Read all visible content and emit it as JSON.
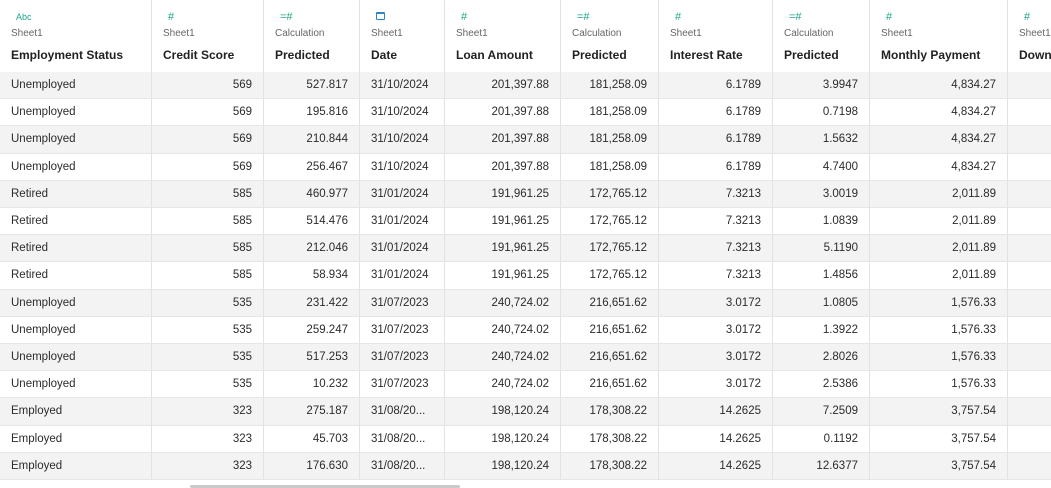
{
  "columns": [
    {
      "source": "Sheet1",
      "name": "Employment Status",
      "icon": "abc-string-icon",
      "glyph": "Abc",
      "color": "teal"
    },
    {
      "source": "Sheet1",
      "name": "Credit Score",
      "icon": "number-icon",
      "glyph": "#",
      "color": "teal"
    },
    {
      "source": "Calculation",
      "name": "Predicted",
      "icon": "calculated-number-icon",
      "glyph": "=#",
      "color": "teal"
    },
    {
      "source": "Sheet1",
      "name": "Date",
      "icon": "calendar-icon",
      "glyph": "",
      "color": "blue"
    },
    {
      "source": "Sheet1",
      "name": "Loan Amount",
      "icon": "number-icon",
      "glyph": "#",
      "color": "teal"
    },
    {
      "source": "Calculation",
      "name": "Predicted",
      "icon": "calculated-number-icon",
      "glyph": "=#",
      "color": "teal"
    },
    {
      "source": "Sheet1",
      "name": "Interest Rate",
      "icon": "number-icon",
      "glyph": "#",
      "color": "teal"
    },
    {
      "source": "Calculation",
      "name": "Predicted",
      "icon": "calculated-number-icon",
      "glyph": "=#",
      "color": "teal"
    },
    {
      "source": "Sheet1",
      "name": "Monthly Payment",
      "icon": "number-icon",
      "glyph": "#",
      "color": "teal"
    },
    {
      "source": "Sheet1",
      "name": "Down",
      "icon": "number-icon",
      "glyph": "#",
      "color": "teal"
    }
  ],
  "rows": [
    [
      "Unemployed",
      "569",
      "527.817",
      "31/10/2024",
      "201,397.88",
      "181,258.09",
      "6.1789",
      "3.9947",
      "4,834.27",
      ""
    ],
    [
      "Unemployed",
      "569",
      "195.816",
      "31/10/2024",
      "201,397.88",
      "181,258.09",
      "6.1789",
      "0.7198",
      "4,834.27",
      ""
    ],
    [
      "Unemployed",
      "569",
      "210.844",
      "31/10/2024",
      "201,397.88",
      "181,258.09",
      "6.1789",
      "1.5632",
      "4,834.27",
      ""
    ],
    [
      "Unemployed",
      "569",
      "256.467",
      "31/10/2024",
      "201,397.88",
      "181,258.09",
      "6.1789",
      "4.7400",
      "4,834.27",
      ""
    ],
    [
      "Retired",
      "585",
      "460.977",
      "31/01/2024",
      "191,961.25",
      "172,765.12",
      "7.3213",
      "3.0019",
      "2,011.89",
      ""
    ],
    [
      "Retired",
      "585",
      "514.476",
      "31/01/2024",
      "191,961.25",
      "172,765.12",
      "7.3213",
      "1.0839",
      "2,011.89",
      ""
    ],
    [
      "Retired",
      "585",
      "212.046",
      "31/01/2024",
      "191,961.25",
      "172,765.12",
      "7.3213",
      "5.1190",
      "2,011.89",
      ""
    ],
    [
      "Retired",
      "585",
      "58.934",
      "31/01/2024",
      "191,961.25",
      "172,765.12",
      "7.3213",
      "1.4856",
      "2,011.89",
      ""
    ],
    [
      "Unemployed",
      "535",
      "231.422",
      "31/07/2023",
      "240,724.02",
      "216,651.62",
      "3.0172",
      "1.0805",
      "1,576.33",
      ""
    ],
    [
      "Unemployed",
      "535",
      "259.247",
      "31/07/2023",
      "240,724.02",
      "216,651.62",
      "3.0172",
      "1.3922",
      "1,576.33",
      ""
    ],
    [
      "Unemployed",
      "535",
      "517.253",
      "31/07/2023",
      "240,724.02",
      "216,651.62",
      "3.0172",
      "2.8026",
      "1,576.33",
      ""
    ],
    [
      "Unemployed",
      "535",
      "10.232",
      "31/07/2023",
      "240,724.02",
      "216,651.62",
      "3.0172",
      "2.5386",
      "1,576.33",
      ""
    ],
    [
      "Employed",
      "323",
      "275.187",
      "31/08/20...",
      "198,120.24",
      "178,308.22",
      "14.2625",
      "7.2509",
      "3,757.54",
      ""
    ],
    [
      "Employed",
      "323",
      "45.703",
      "31/08/20...",
      "198,120.24",
      "178,308.22",
      "14.2625",
      "0.1192",
      "3,757.54",
      ""
    ],
    [
      "Employed",
      "323",
      "176.630",
      "31/08/20...",
      "198,120.24",
      "178,308.22",
      "14.2625",
      "12.6377",
      "3,757.54",
      ""
    ]
  ],
  "colors": {
    "type_icon_teal": "#1fa58a",
    "type_icon_blue": "#2f86c4",
    "alt_row": "#f3f3f3"
  }
}
